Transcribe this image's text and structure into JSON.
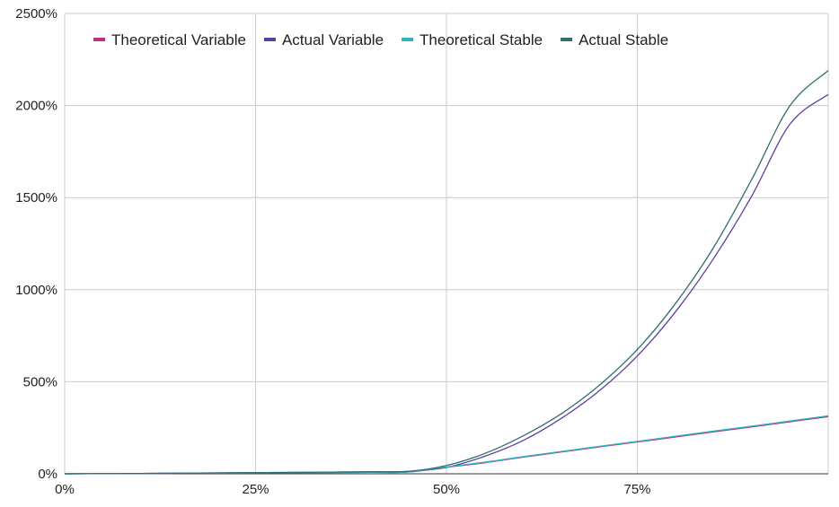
{
  "chart_data": {
    "type": "line",
    "title": "",
    "xlabel": "",
    "ylabel": "",
    "xlim": [
      0,
      100
    ],
    "ylim": [
      0,
      2500
    ],
    "x_ticks": [
      {
        "value": 0,
        "label": "0%"
      },
      {
        "value": 25,
        "label": "25%"
      },
      {
        "value": 50,
        "label": "50%"
      },
      {
        "value": 75,
        "label": "75%"
      }
    ],
    "y_ticks": [
      {
        "value": 0,
        "label": "0%"
      },
      {
        "value": 500,
        "label": "500%"
      },
      {
        "value": 1000,
        "label": "1000%"
      },
      {
        "value": 1500,
        "label": "1500%"
      },
      {
        "value": 2000,
        "label": "2000%"
      },
      {
        "value": 2500,
        "label": "2500%"
      }
    ],
    "grid": true,
    "legend_position": "top-left",
    "x": [
      0,
      5,
      10,
      15,
      20,
      25,
      30,
      35,
      40,
      45,
      50,
      55,
      60,
      65,
      70,
      75,
      80,
      85,
      90,
      95,
      100
    ],
    "series": [
      {
        "name": "Theoretical Variable",
        "color": "#b5338a",
        "values": [
          0,
          1,
          2,
          3,
          4,
          5,
          6,
          7,
          8,
          10,
          35,
          60,
          90,
          118,
          146,
          173,
          200,
          228,
          255,
          283,
          310
        ]
      },
      {
        "name": "Actual Variable",
        "color": "#5b3fa0",
        "values": [
          0,
          1,
          2,
          3,
          5,
          6,
          7,
          9,
          11,
          13,
          35,
          95,
          180,
          300,
          450,
          640,
          880,
          1170,
          1510,
          1900,
          2060
        ]
      },
      {
        "name": "Theoretical Stable",
        "color": "#2bb5c2",
        "values": [
          0,
          1,
          2,
          3,
          4,
          5,
          6,
          7,
          8,
          10,
          37,
          63,
          93,
          121,
          149,
          176,
          204,
          232,
          259,
          287,
          315
        ]
      },
      {
        "name": "Actual Stable",
        "color": "#2f6e73",
        "values": [
          0,
          1,
          2,
          3,
          5,
          6,
          8,
          9,
          11,
          13,
          45,
          110,
          205,
          325,
          480,
          675,
          925,
          1230,
          1600,
          2000,
          2190
        ]
      }
    ]
  }
}
